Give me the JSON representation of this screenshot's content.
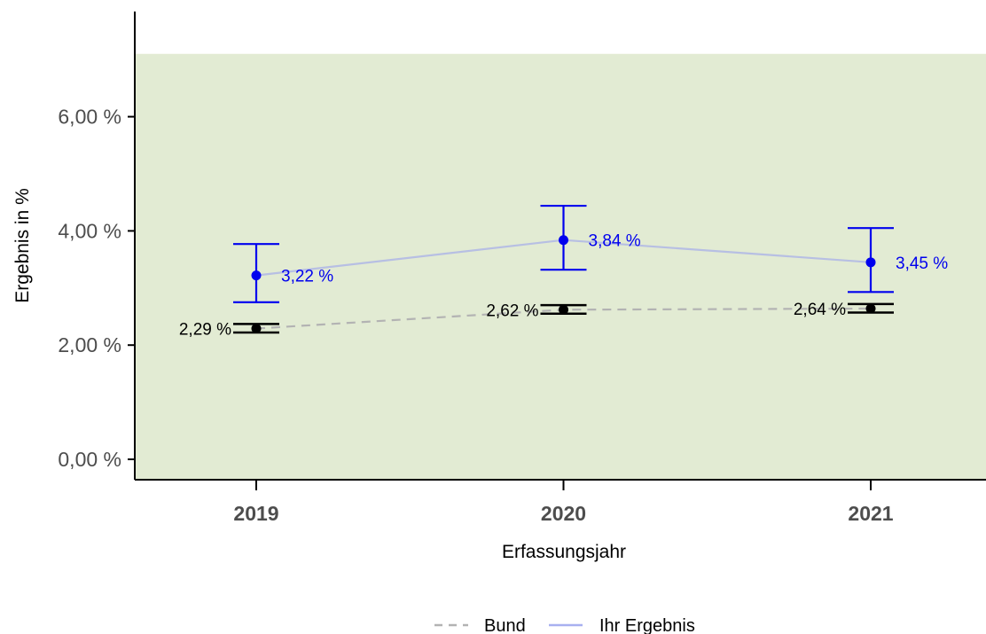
{
  "chart_data": {
    "type": "line",
    "xlabel": "Erfassungsjahr",
    "ylabel": "Ergebnis in %",
    "categories": [
      "2019",
      "2020",
      "2021"
    ],
    "ylim": [
      -0.35,
      7.1
    ],
    "yticks": [
      0,
      2,
      4,
      6
    ],
    "ytick_labels": [
      "0,00 %",
      "2,00 %",
      "4,00 %",
      "6,00 %"
    ],
    "reference_band": {
      "from": -0.35,
      "to": 7.1,
      "color": "#e2ebd3"
    },
    "grid": false,
    "legend_position": "bottom",
    "series": [
      {
        "name": "Bund",
        "style": "dashed",
        "color": "#b3b3b3",
        "point_color": "#000000",
        "values": [
          2.29,
          2.62,
          2.64
        ],
        "ci_low": [
          2.22,
          2.55,
          2.57
        ],
        "ci_high": [
          2.37,
          2.7,
          2.72
        ],
        "labels": [
          "2,29 %",
          "2,62 %",
          "2,64 %"
        ]
      },
      {
        "name": "Ihr Ergebnis",
        "style": "solid",
        "color": "#b7bfe3",
        "point_color": "#0000ee",
        "values": [
          3.22,
          3.84,
          3.45
        ],
        "ci_low": [
          2.75,
          3.32,
          2.93
        ],
        "ci_high": [
          3.77,
          4.44,
          4.05
        ],
        "labels": [
          "3,22 %",
          "3,84 %",
          "3,45 %"
        ]
      }
    ]
  },
  "legend": {
    "bund_label": "Bund",
    "ihr_label": "Ihr Ergebnis"
  }
}
